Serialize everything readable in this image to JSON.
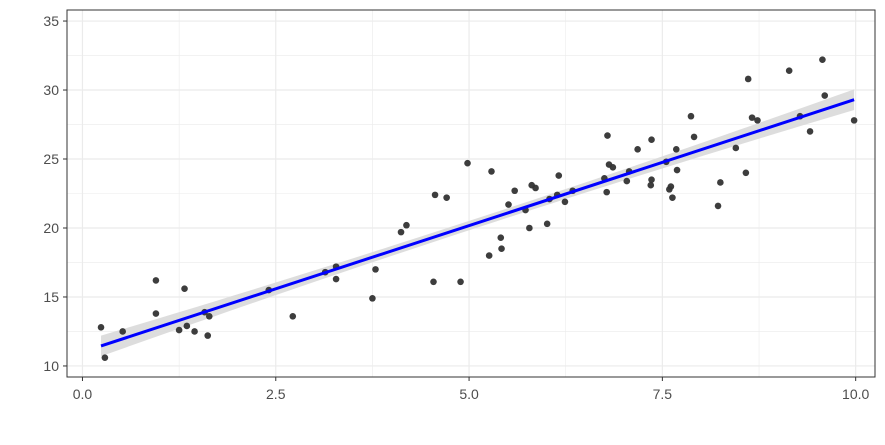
{
  "chart_data": {
    "type": "scatter",
    "title": "",
    "xlabel": "",
    "ylabel": "",
    "xlim": [
      -0.2,
      10.25
    ],
    "ylim": [
      9.2,
      35.8
    ],
    "x_ticks": [
      0.0,
      2.5,
      5.0,
      7.5,
      10.0
    ],
    "x_tick_labels": [
      "0.0",
      "2.5",
      "5.0",
      "7.5",
      "10.0"
    ],
    "y_ticks": [
      10,
      15,
      20,
      25,
      30,
      35
    ],
    "y_tick_labels": [
      "10",
      "15",
      "20",
      "25",
      "30",
      "35"
    ],
    "grid": true,
    "points": [
      {
        "x": 0.24,
        "y": 12.8
      },
      {
        "x": 0.29,
        "y": 10.6
      },
      {
        "x": 0.52,
        "y": 12.5
      },
      {
        "x": 0.95,
        "y": 16.2
      },
      {
        "x": 0.95,
        "y": 13.8
      },
      {
        "x": 1.25,
        "y": 12.6
      },
      {
        "x": 1.32,
        "y": 15.6
      },
      {
        "x": 1.35,
        "y": 12.9
      },
      {
        "x": 1.45,
        "y": 12.5
      },
      {
        "x": 1.58,
        "y": 13.9
      },
      {
        "x": 1.62,
        "y": 12.2
      },
      {
        "x": 1.64,
        "y": 13.6
      },
      {
        "x": 2.41,
        "y": 15.5
      },
      {
        "x": 2.72,
        "y": 13.6
      },
      {
        "x": 3.14,
        "y": 16.8
      },
      {
        "x": 3.28,
        "y": 17.2
      },
      {
        "x": 3.28,
        "y": 16.3
      },
      {
        "x": 3.75,
        "y": 14.9
      },
      {
        "x": 3.79,
        "y": 17.0
      },
      {
        "x": 4.12,
        "y": 19.7
      },
      {
        "x": 4.19,
        "y": 20.2
      },
      {
        "x": 4.54,
        "y": 16.1
      },
      {
        "x": 4.56,
        "y": 22.4
      },
      {
        "x": 4.71,
        "y": 22.2
      },
      {
        "x": 4.89,
        "y": 16.1
      },
      {
        "x": 4.98,
        "y": 24.7
      },
      {
        "x": 5.26,
        "y": 18.0
      },
      {
        "x": 5.29,
        "y": 24.1
      },
      {
        "x": 5.41,
        "y": 19.3
      },
      {
        "x": 5.42,
        "y": 18.5
      },
      {
        "x": 5.51,
        "y": 21.7
      },
      {
        "x": 5.59,
        "y": 22.7
      },
      {
        "x": 5.73,
        "y": 21.3
      },
      {
        "x": 5.78,
        "y": 20.0
      },
      {
        "x": 5.81,
        "y": 23.1
      },
      {
        "x": 5.86,
        "y": 22.9
      },
      {
        "x": 6.01,
        "y": 20.3
      },
      {
        "x": 6.04,
        "y": 22.1
      },
      {
        "x": 6.14,
        "y": 22.4
      },
      {
        "x": 6.16,
        "y": 23.8
      },
      {
        "x": 6.24,
        "y": 21.9
      },
      {
        "x": 6.34,
        "y": 22.7
      },
      {
        "x": 6.75,
        "y": 23.6
      },
      {
        "x": 6.78,
        "y": 22.6
      },
      {
        "x": 6.79,
        "y": 26.7
      },
      {
        "x": 6.81,
        "y": 24.6
      },
      {
        "x": 6.86,
        "y": 24.4
      },
      {
        "x": 7.04,
        "y": 23.4
      },
      {
        "x": 7.07,
        "y": 24.1
      },
      {
        "x": 7.18,
        "y": 25.7
      },
      {
        "x": 7.35,
        "y": 23.1
      },
      {
        "x": 7.36,
        "y": 26.4
      },
      {
        "x": 7.36,
        "y": 23.5
      },
      {
        "x": 7.55,
        "y": 24.8
      },
      {
        "x": 7.59,
        "y": 22.8
      },
      {
        "x": 7.61,
        "y": 23.0
      },
      {
        "x": 7.63,
        "y": 22.2
      },
      {
        "x": 7.68,
        "y": 25.7
      },
      {
        "x": 7.69,
        "y": 24.2
      },
      {
        "x": 7.87,
        "y": 28.1
      },
      {
        "x": 7.91,
        "y": 26.6
      },
      {
        "x": 8.22,
        "y": 21.6
      },
      {
        "x": 8.25,
        "y": 23.3
      },
      {
        "x": 8.45,
        "y": 25.8
      },
      {
        "x": 8.58,
        "y": 24.0
      },
      {
        "x": 8.61,
        "y": 30.8
      },
      {
        "x": 8.66,
        "y": 28.0
      },
      {
        "x": 8.73,
        "y": 27.8
      },
      {
        "x": 9.14,
        "y": 31.4
      },
      {
        "x": 9.28,
        "y": 28.1
      },
      {
        "x": 9.41,
        "y": 27.0
      },
      {
        "x": 9.57,
        "y": 32.2
      },
      {
        "x": 9.6,
        "y": 29.6
      },
      {
        "x": 9.98,
        "y": 27.8
      }
    ],
    "fit": {
      "type": "linear",
      "x": [
        0.24,
        9.98
      ],
      "y": [
        11.45,
        29.3
      ],
      "ci_halfwidth": 0.75
    },
    "colors": {
      "points": "#333333",
      "fit_line": "#0000ff",
      "ci_band": "#d9d9d9",
      "grid": "#ebebeb",
      "panel_border": "#333333"
    }
  }
}
